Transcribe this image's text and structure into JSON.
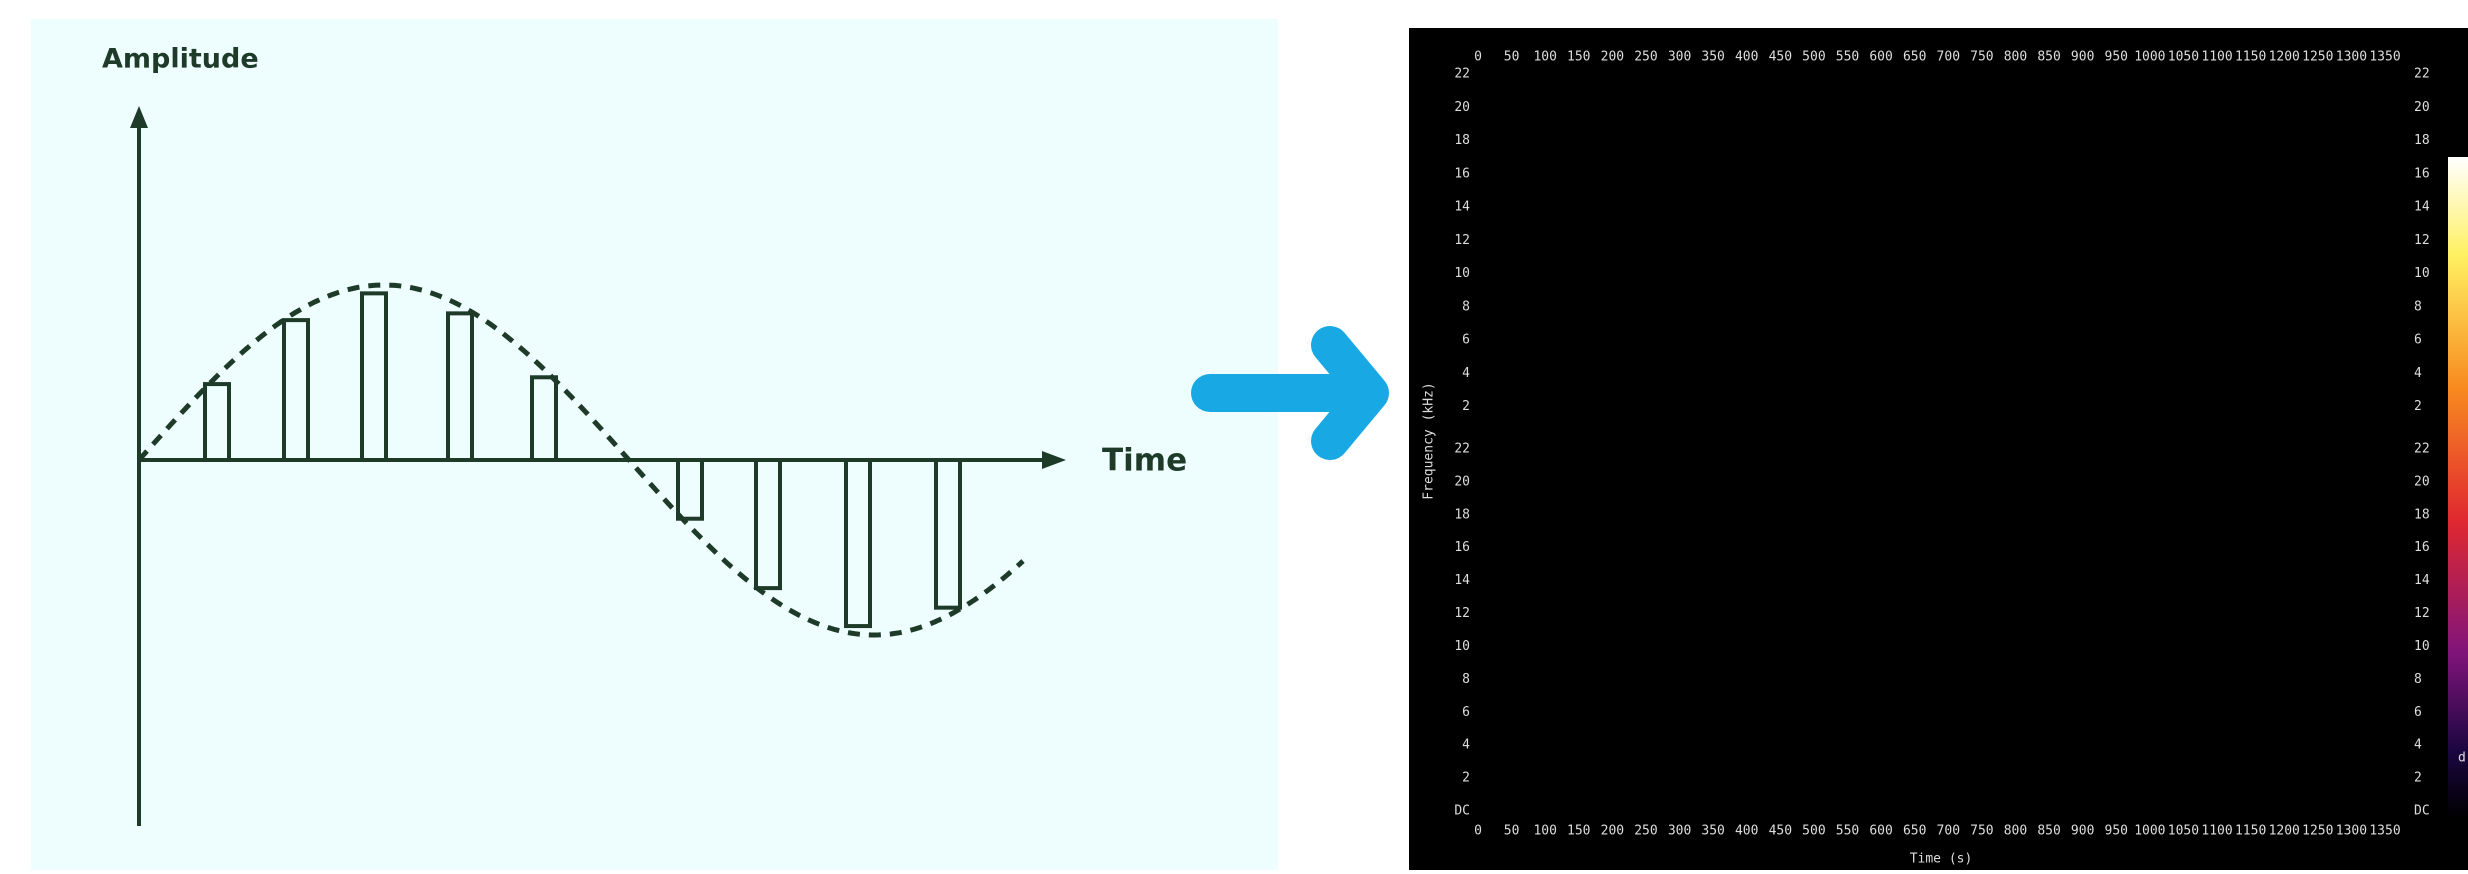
{
  "diagram": {
    "y_axis_label": "Amplitude",
    "x_axis_label": "Time"
  },
  "spectrogram": {
    "x_label": "Time (s)",
    "y_label": "Frequency (kHz)",
    "xticks": [
      0,
      50,
      100,
      150,
      200,
      250,
      300,
      350,
      400,
      450,
      500,
      550,
      600,
      650,
      700,
      750,
      800,
      850,
      900,
      950,
      1000,
      1050,
      1100,
      1150,
      1200,
      1250,
      1300,
      1350
    ],
    "yticks_upper": [
      22,
      20,
      18,
      16,
      14,
      12,
      10,
      8,
      6,
      4,
      2
    ],
    "yticks_lower": [
      22,
      20,
      18,
      16,
      14,
      12,
      10,
      8,
      6,
      4,
      2,
      "DC"
    ],
    "colorbar_label": "d"
  }
}
